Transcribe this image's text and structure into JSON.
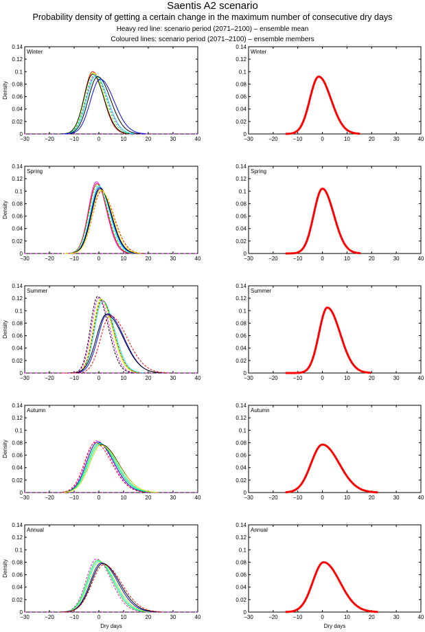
{
  "chart_data": {
    "type": "line",
    "title": "Saentis A2 scenario",
    "subtitle": "Probability density of getting a certain change in the maximum number of consecutive dry days",
    "note1": "Heavy red line: scenario period (2071–2100) – ensemble mean",
    "note2": "Coloured lines: scenario period (2071–2100) – ensemble members",
    "xlabel": "Dry days",
    "ylabel": "Density",
    "xlim": [
      -30,
      40
    ],
    "ylim": [
      0,
      0.14
    ],
    "xticks": [
      "−30",
      "−20",
      "−10",
      "0",
      "10",
      "20",
      "30",
      "40"
    ],
    "yticks": [
      "0",
      "0.02",
      "0.04",
      "0.06",
      "0.08",
      "0.1",
      "0.12",
      "0.14"
    ],
    "mean_color": "#ff0000",
    "curve_model": "split-normal: [mode, peak density, left sigma, right sigma]",
    "panels": [
      {
        "label": "Winter",
        "mean": [
          -1.5,
          0.092,
          3.6,
          5.0
        ],
        "members": [
          [
            -2.5,
            0.1,
            3.4,
            4.3,
            "#ff0000",
            0
          ],
          [
            -2.3,
            0.098,
            3.5,
            4.4,
            "#ffff00",
            0
          ],
          [
            -2.5,
            0.096,
            3.5,
            4.5,
            "#000000",
            0
          ],
          [
            -1.8,
            0.095,
            3.6,
            4.6,
            "#00ff00",
            1
          ],
          [
            -1.5,
            0.094,
            3.6,
            4.8,
            "#ff00ff",
            1
          ],
          [
            -1.2,
            0.093,
            3.7,
            4.8,
            "#00ffff",
            0
          ],
          [
            -0.5,
            0.092,
            3.8,
            5.2,
            "#000000",
            0
          ],
          [
            0.5,
            0.088,
            3.9,
            5.6,
            "#0000ff",
            0
          ]
        ]
      },
      {
        "label": "Spring",
        "mean": [
          0,
          0.104,
          3.5,
          4.6
        ],
        "members": [
          [
            -1,
            0.115,
            3.2,
            4.1,
            "#ff00ff",
            0
          ],
          [
            -0.8,
            0.112,
            3.3,
            4.2,
            "#ff0000",
            0
          ],
          [
            -0.5,
            0.11,
            3.4,
            4.3,
            "#00ff00",
            1
          ],
          [
            0,
            0.108,
            3.4,
            4.4,
            "#00ffff",
            0
          ],
          [
            0.3,
            0.106,
            3.5,
            4.5,
            "#0000ff",
            0
          ],
          [
            0.5,
            0.104,
            3.5,
            4.6,
            "#000000",
            0
          ],
          [
            1,
            0.1,
            3.6,
            5.0,
            "#ff0000",
            1
          ],
          [
            0.8,
            0.102,
            3.5,
            4.8,
            "#ffff00",
            0
          ]
        ]
      },
      {
        "label": "Summer",
        "mean": [
          2,
          0.105,
          3.4,
          5.2
        ],
        "members": [
          [
            -0.5,
            0.123,
            2.9,
            4.3,
            "#000000",
            1
          ],
          [
            0,
            0.121,
            3.0,
            4.4,
            "#ff00ff",
            1
          ],
          [
            0.8,
            0.119,
            3.1,
            4.6,
            "#ffff00",
            0
          ],
          [
            1,
            0.118,
            3.1,
            4.7,
            "#00ff00",
            1
          ],
          [
            1.5,
            0.116,
            3.2,
            4.8,
            "#00ffff",
            0
          ],
          [
            1.2,
            0.117,
            3.2,
            4.7,
            "#ff0000",
            1
          ],
          [
            3.5,
            0.095,
            3.9,
            6.6,
            "#0000ff",
            0
          ],
          [
            3,
            0.094,
            4.0,
            6.8,
            "#000000",
            0
          ],
          [
            4.5,
            0.092,
            3.8,
            7.0,
            "#ff0000",
            1
          ]
        ]
      },
      {
        "label": "Autumn",
        "mean": [
          0,
          0.077,
          4.6,
          6.8
        ],
        "members": [
          [
            -1,
            0.083,
            4.3,
            6.4,
            "#ff00ff",
            1
          ],
          [
            -0.5,
            0.081,
            4.4,
            6.5,
            "#0000ff",
            0
          ],
          [
            0,
            0.079,
            4.5,
            6.7,
            "#00ff00",
            0
          ],
          [
            0.5,
            0.078,
            4.6,
            6.8,
            "#00ffff",
            0
          ],
          [
            1,
            0.077,
            4.7,
            7.0,
            "#000000",
            0
          ],
          [
            0.8,
            0.076,
            4.6,
            7.1,
            "#ffff00",
            0
          ],
          [
            -1.5,
            0.08,
            4.3,
            6.6,
            "#ff0000",
            1
          ]
        ]
      },
      {
        "label": "Annual",
        "mean": [
          0.5,
          0.08,
          4.4,
          6.6
        ],
        "members": [
          [
            -1,
            0.085,
            4.1,
            6.0,
            "#ff00ff",
            1
          ],
          [
            -0.5,
            0.083,
            4.2,
            6.2,
            "#00ff00",
            0
          ],
          [
            0,
            0.081,
            4.3,
            6.4,
            "#00ffff",
            0
          ],
          [
            0.5,
            0.08,
            4.4,
            6.5,
            "#ffff00",
            0
          ],
          [
            1,
            0.079,
            4.5,
            6.7,
            "#0000ff",
            0
          ],
          [
            1.5,
            0.078,
            4.6,
            6.9,
            "#000000",
            0
          ],
          [
            2,
            0.076,
            4.8,
            7.2,
            "#ff0000",
            1
          ]
        ]
      }
    ]
  }
}
